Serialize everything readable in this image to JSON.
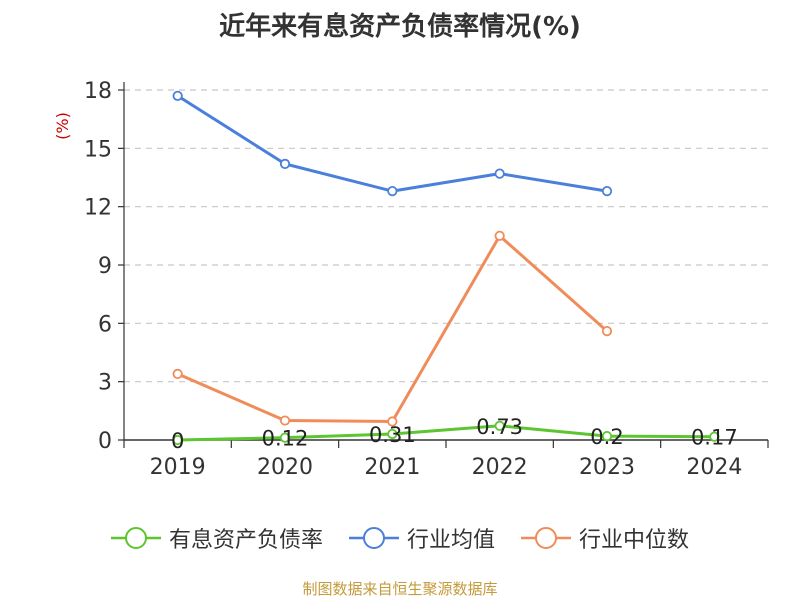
{
  "chart_data": {
    "type": "line",
    "title": "近年来有息资产负债率情况(%)",
    "ylabel": "(%)",
    "xlabel": "",
    "categories": [
      "2019",
      "2020",
      "2021",
      "2022",
      "2023",
      "2024"
    ],
    "ylim": [
      0,
      18
    ],
    "yticks": [
      0,
      3,
      6,
      9,
      12,
      15,
      18
    ],
    "grid": true,
    "legend": "bottom",
    "series": [
      {
        "name": "有息资产负债率",
        "color": "#5cc52f",
        "values": [
          0,
          0.12,
          0.31,
          0.73,
          0.2,
          0.17
        ],
        "labels": [
          "0",
          "0.12",
          "0.31",
          "0.73",
          "0.2",
          "0.17"
        ]
      },
      {
        "name": "行业均值",
        "color": "#4a7fdc",
        "values": [
          17.7,
          14.2,
          12.8,
          13.7,
          12.8,
          null
        ]
      },
      {
        "name": "行业中位数",
        "color": "#f08c5a",
        "values": [
          3.4,
          1.0,
          0.95,
          10.5,
          5.6,
          null
        ]
      }
    ]
  },
  "source": "制图数据来自恒生聚源数据库"
}
